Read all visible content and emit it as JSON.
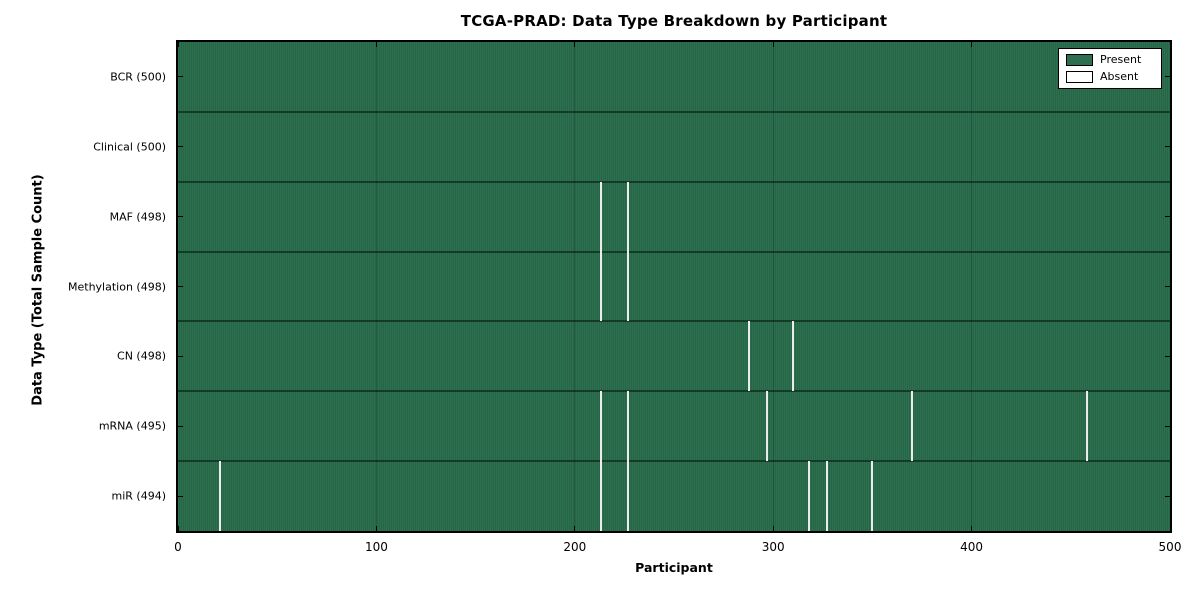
{
  "chart_data": {
    "type": "heatmap",
    "title": "TCGA-PRAD: Data Type Breakdown by Participant",
    "xlabel": "Participant",
    "ylabel": "Data Type (Total Sample Count)",
    "xlim": [
      0,
      500
    ],
    "x_ticks": [
      0,
      100,
      200,
      300,
      400,
      500
    ],
    "grid": "faint vertical gridlines at x ticks",
    "legend_position": "upper right",
    "legend": [
      {
        "label": "Present",
        "color": "#2d7050"
      },
      {
        "label": "Absent",
        "color": "#ffffff"
      }
    ],
    "colors": {
      "present": "#2d7050",
      "present_stripe_dark": "#1f5a3d",
      "absent_line": "#ececec",
      "axis": "#000000"
    },
    "rows": [
      {
        "label": "BCR (500)",
        "data_type": "BCR",
        "total": 500,
        "absent_participants": []
      },
      {
        "label": "Clinical (500)",
        "data_type": "Clinical",
        "total": 500,
        "absent_participants": []
      },
      {
        "label": "MAF (498)",
        "data_type": "MAF",
        "total": 498,
        "absent_participants": [
          213,
          227
        ]
      },
      {
        "label": "Methylation (498)",
        "data_type": "Methylation",
        "total": 498,
        "absent_participants": [
          213,
          227
        ]
      },
      {
        "label": "CN (498)",
        "data_type": "CN",
        "total": 498,
        "absent_participants": [
          288,
          310
        ]
      },
      {
        "label": "mRNA (495)",
        "data_type": "mRNA",
        "total": 495,
        "absent_participants": [
          213,
          227,
          297,
          370,
          458
        ]
      },
      {
        "label": "miR (494)",
        "data_type": "miR",
        "total": 494,
        "absent_participants": [
          21,
          213,
          227,
          318,
          327,
          350
        ]
      }
    ]
  }
}
